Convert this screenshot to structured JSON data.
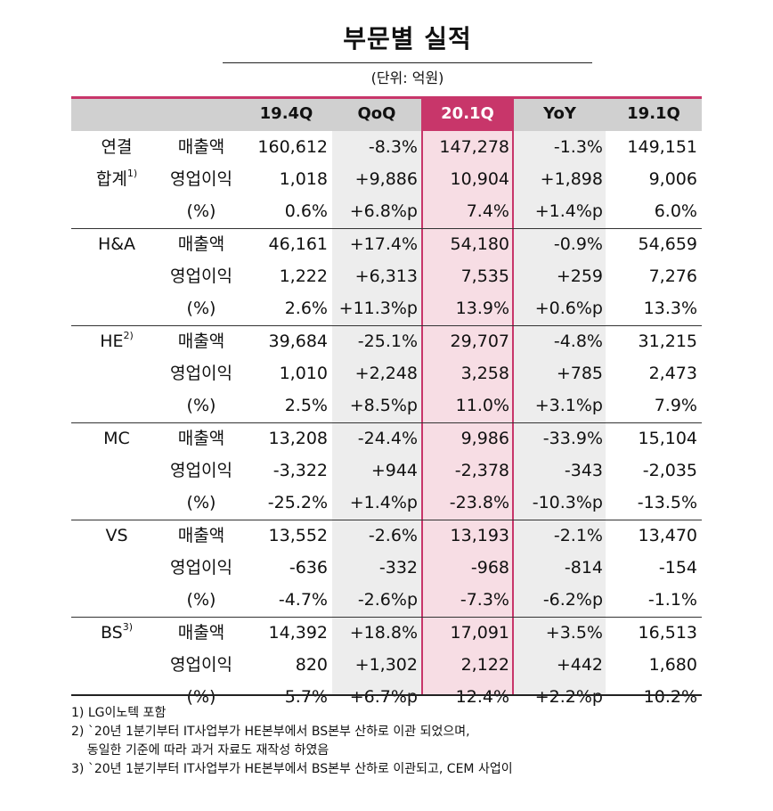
{
  "title": "부문별 실적",
  "unit": "(단위: 억원)",
  "headers": [
    "19.4Q",
    "QoQ",
    "20.1Q",
    "YoY",
    "19.1Q"
  ],
  "groups": [
    {
      "segment": "연결",
      "segment2": "합계",
      "note": "1)",
      "rows": [
        {
          "metric": "매출액",
          "values": [
            "160,612",
            "-8.3%",
            "147,278",
            "-1.3%",
            "149,151"
          ]
        },
        {
          "metric": "영업이익",
          "values": [
            "1,018",
            "+9,886",
            "10,904",
            "+1,898",
            "9,006"
          ]
        },
        {
          "metric": "(%)",
          "values": [
            "0.6%",
            "+6.8%p",
            "7.4%",
            "+1.4%p",
            "6.0%"
          ]
        }
      ]
    },
    {
      "segment": "H&A",
      "note": "",
      "rows": [
        {
          "metric": "매출액",
          "values": [
            "46,161",
            "+17.4%",
            "54,180",
            "-0.9%",
            "54,659"
          ]
        },
        {
          "metric": "영업이익",
          "values": [
            "1,222",
            "+6,313",
            "7,535",
            "+259",
            "7,276"
          ]
        },
        {
          "metric": "(%)",
          "values": [
            "2.6%",
            "+11.3%p",
            "13.9%",
            "+0.6%p",
            "13.3%"
          ]
        }
      ]
    },
    {
      "segment": "HE",
      "note": "2)",
      "rows": [
        {
          "metric": "매출액",
          "values": [
            "39,684",
            "-25.1%",
            "29,707",
            "-4.8%",
            "31,215"
          ]
        },
        {
          "metric": "영업이익",
          "values": [
            "1,010",
            "+2,248",
            "3,258",
            "+785",
            "2,473"
          ]
        },
        {
          "metric": "(%)",
          "values": [
            "2.5%",
            "+8.5%p",
            "11.0%",
            "+3.1%p",
            "7.9%"
          ]
        }
      ]
    },
    {
      "segment": "MC",
      "note": "",
      "rows": [
        {
          "metric": "매출액",
          "values": [
            "13,208",
            "-24.4%",
            "9,986",
            "-33.9%",
            "15,104"
          ]
        },
        {
          "metric": "영업이익",
          "values": [
            "-3,322",
            "+944",
            "-2,378",
            "-343",
            "-2,035"
          ]
        },
        {
          "metric": "(%)",
          "values": [
            "-25.2%",
            "+1.4%p",
            "-23.8%",
            "-10.3%p",
            "-13.5%"
          ]
        }
      ]
    },
    {
      "segment": "VS",
      "note": "",
      "rows": [
        {
          "metric": "매출액",
          "values": [
            "13,552",
            "-2.6%",
            "13,193",
            "-2.1%",
            "13,470"
          ]
        },
        {
          "metric": "영업이익",
          "values": [
            "-636",
            "-332",
            "-968",
            "-814",
            "-154"
          ]
        },
        {
          "metric": "(%)",
          "values": [
            "-4.7%",
            "-2.6%p",
            "-7.3%",
            "-6.2%p",
            "-1.1%"
          ]
        }
      ]
    },
    {
      "segment": "BS",
      "note": "3)",
      "rows": [
        {
          "metric": "매출액",
          "values": [
            "14,392",
            "+18.8%",
            "17,091",
            "+3.5%",
            "16,513"
          ]
        },
        {
          "metric": "영업이익",
          "values": [
            "820",
            "+1,302",
            "2,122",
            "+442",
            "1,680"
          ]
        },
        {
          "metric": "(%)",
          "values": [
            "5.7%",
            "+6.7%p",
            "12.4%",
            "+2.2%p",
            "10.2%"
          ]
        }
      ]
    }
  ],
  "footnotes": [
    "1) LG이노텍 포함",
    "2) `20년 1분기부터 IT사업부가 HE본부에서 BS본부 산하로 이관 되었으며,",
    "    동일한 기준에 따라 과거 자료도 재작성 하였음",
    "3) `20년 1분기부터 IT사업부가 HE본부에서 BS본부 산하로 이관되고, CEM 사업이"
  ],
  "colors": {
    "highlight": "#c8366a",
    "highlight_bg": "#f7dde4",
    "header_bg": "#d0d0d0",
    "shade": "#ededed"
  }
}
